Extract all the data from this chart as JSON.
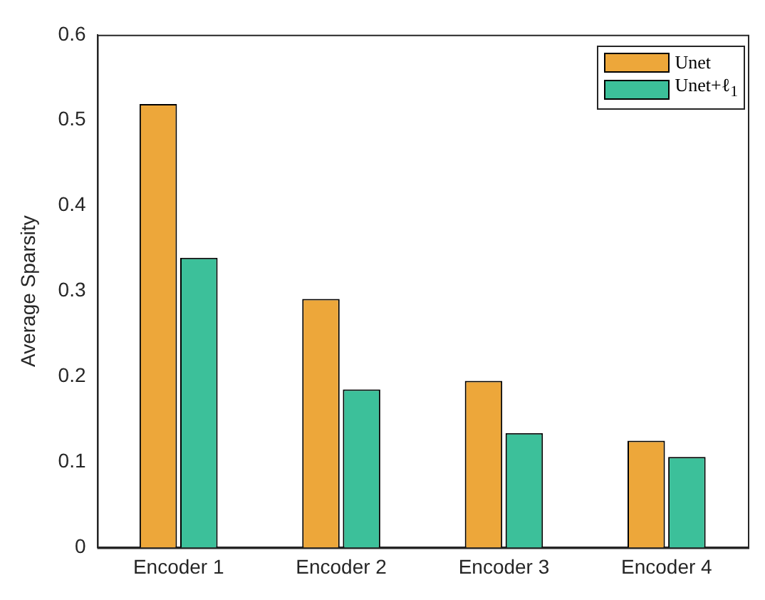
{
  "chart_data": {
    "type": "bar",
    "ylabel": "Average Sparsity",
    "categories": [
      "Encoder 1",
      "Encoder 2",
      "Encoder 3",
      "Encoder 4"
    ],
    "series": [
      {
        "name": "Unet",
        "color": "#eda73a",
        "values": [
          0.519,
          0.291,
          0.195,
          0.125
        ]
      },
      {
        "name": "Unet+ℓ$_{1}$",
        "color": "#3cc09a",
        "values": [
          0.339,
          0.185,
          0.134,
          0.106
        ]
      }
    ],
    "ylim": [
      0,
      0.6
    ],
    "yticks": [
      0,
      0.1,
      0.2,
      0.3,
      0.4,
      0.5,
      0.6
    ],
    "grid": false,
    "legend": "top right"
  }
}
